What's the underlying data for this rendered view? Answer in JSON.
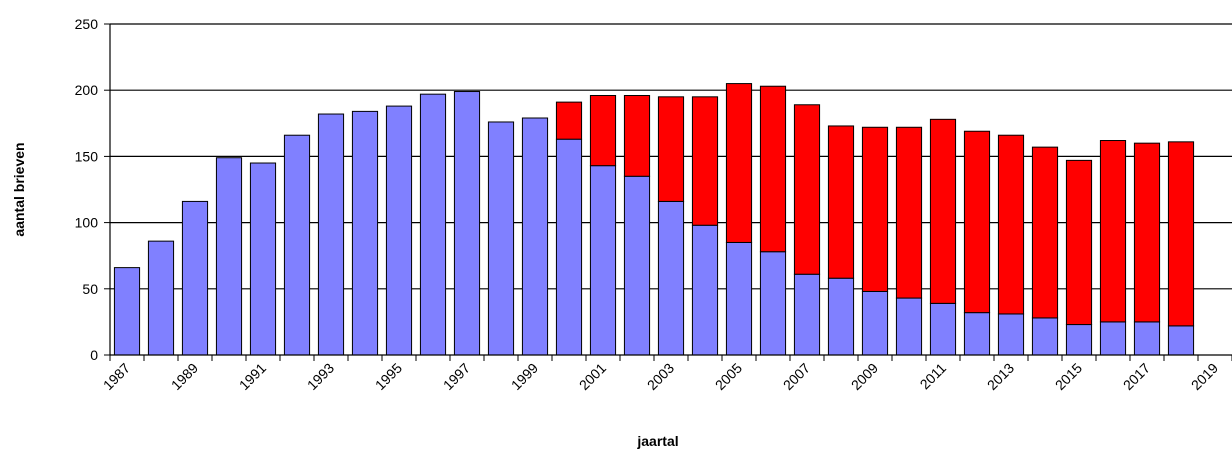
{
  "chart_data": {
    "type": "bar",
    "stacked": true,
    "xlabel": "jaartal",
    "ylabel": "aantal brieven",
    "ylim": [
      0,
      250
    ],
    "yticks": [
      0,
      50,
      100,
      150,
      200,
      250
    ],
    "xticks": [
      1987,
      1989,
      1991,
      1993,
      1995,
      1997,
      1999,
      2001,
      2003,
      2005,
      2007,
      2009,
      2011,
      2013,
      2015,
      2017,
      2019
    ],
    "xlim": [
      1987,
      2020
    ],
    "grid": "horizontal",
    "categories": [
      1987,
      1988,
      1989,
      1990,
      1991,
      1992,
      1993,
      1994,
      1995,
      1996,
      1997,
      1998,
      1999,
      2000,
      2001,
      2002,
      2003,
      2004,
      2005,
      2006,
      2007,
      2008,
      2009,
      2010,
      2011,
      2012,
      2013,
      2014,
      2015,
      2016,
      2017,
      2018
    ],
    "series": [
      {
        "color": "#8080ff",
        "values": [
          66,
          86,
          116,
          149,
          145,
          166,
          182,
          184,
          188,
          197,
          199,
          176,
          179,
          163,
          143,
          135,
          116,
          98,
          85,
          78,
          61,
          58,
          48,
          43,
          39,
          32,
          31,
          28,
          23,
          25,
          25,
          22
        ]
      },
      {
        "color": "#ff0000",
        "values": [
          0,
          0,
          0,
          0,
          0,
          0,
          0,
          0,
          0,
          0,
          0,
          0,
          0,
          28,
          53,
          61,
          79,
          97,
          120,
          125,
          128,
          115,
          124,
          129,
          139,
          137,
          135,
          129,
          124,
          137,
          135,
          139
        ]
      }
    ]
  }
}
